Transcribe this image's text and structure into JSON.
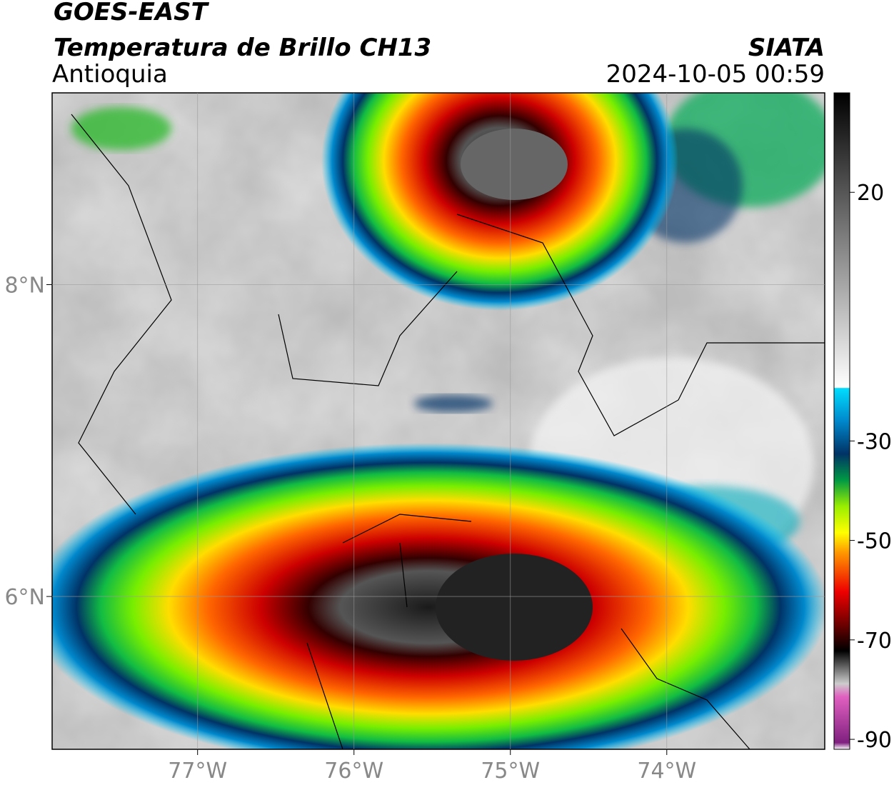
{
  "header": {
    "satellite": "GOES-EAST",
    "product": "Temperatura de Brillo CH13",
    "region": "Antioquia",
    "source": "SIATA",
    "datetime": "2024-10-05 00:59"
  },
  "map": {
    "xlim": [
      -77.93,
      -72.99
    ],
    "ylim": [
      5.02,
      9.23
    ],
    "xticks": [
      {
        "value": -77,
        "label": "77°W"
      },
      {
        "value": -76,
        "label": "76°W"
      },
      {
        "value": -75,
        "label": "75°W"
      },
      {
        "value": -74,
        "label": "74°W"
      }
    ],
    "yticks": [
      {
        "value": 8,
        "label": "8°N"
      },
      {
        "value": 6,
        "label": "6°N"
      }
    ],
    "grid": true
  },
  "colorbar": {
    "lim": [
      -92,
      40
    ],
    "ticks": [
      20,
      -30,
      -50,
      -70,
      -90
    ]
  }
}
